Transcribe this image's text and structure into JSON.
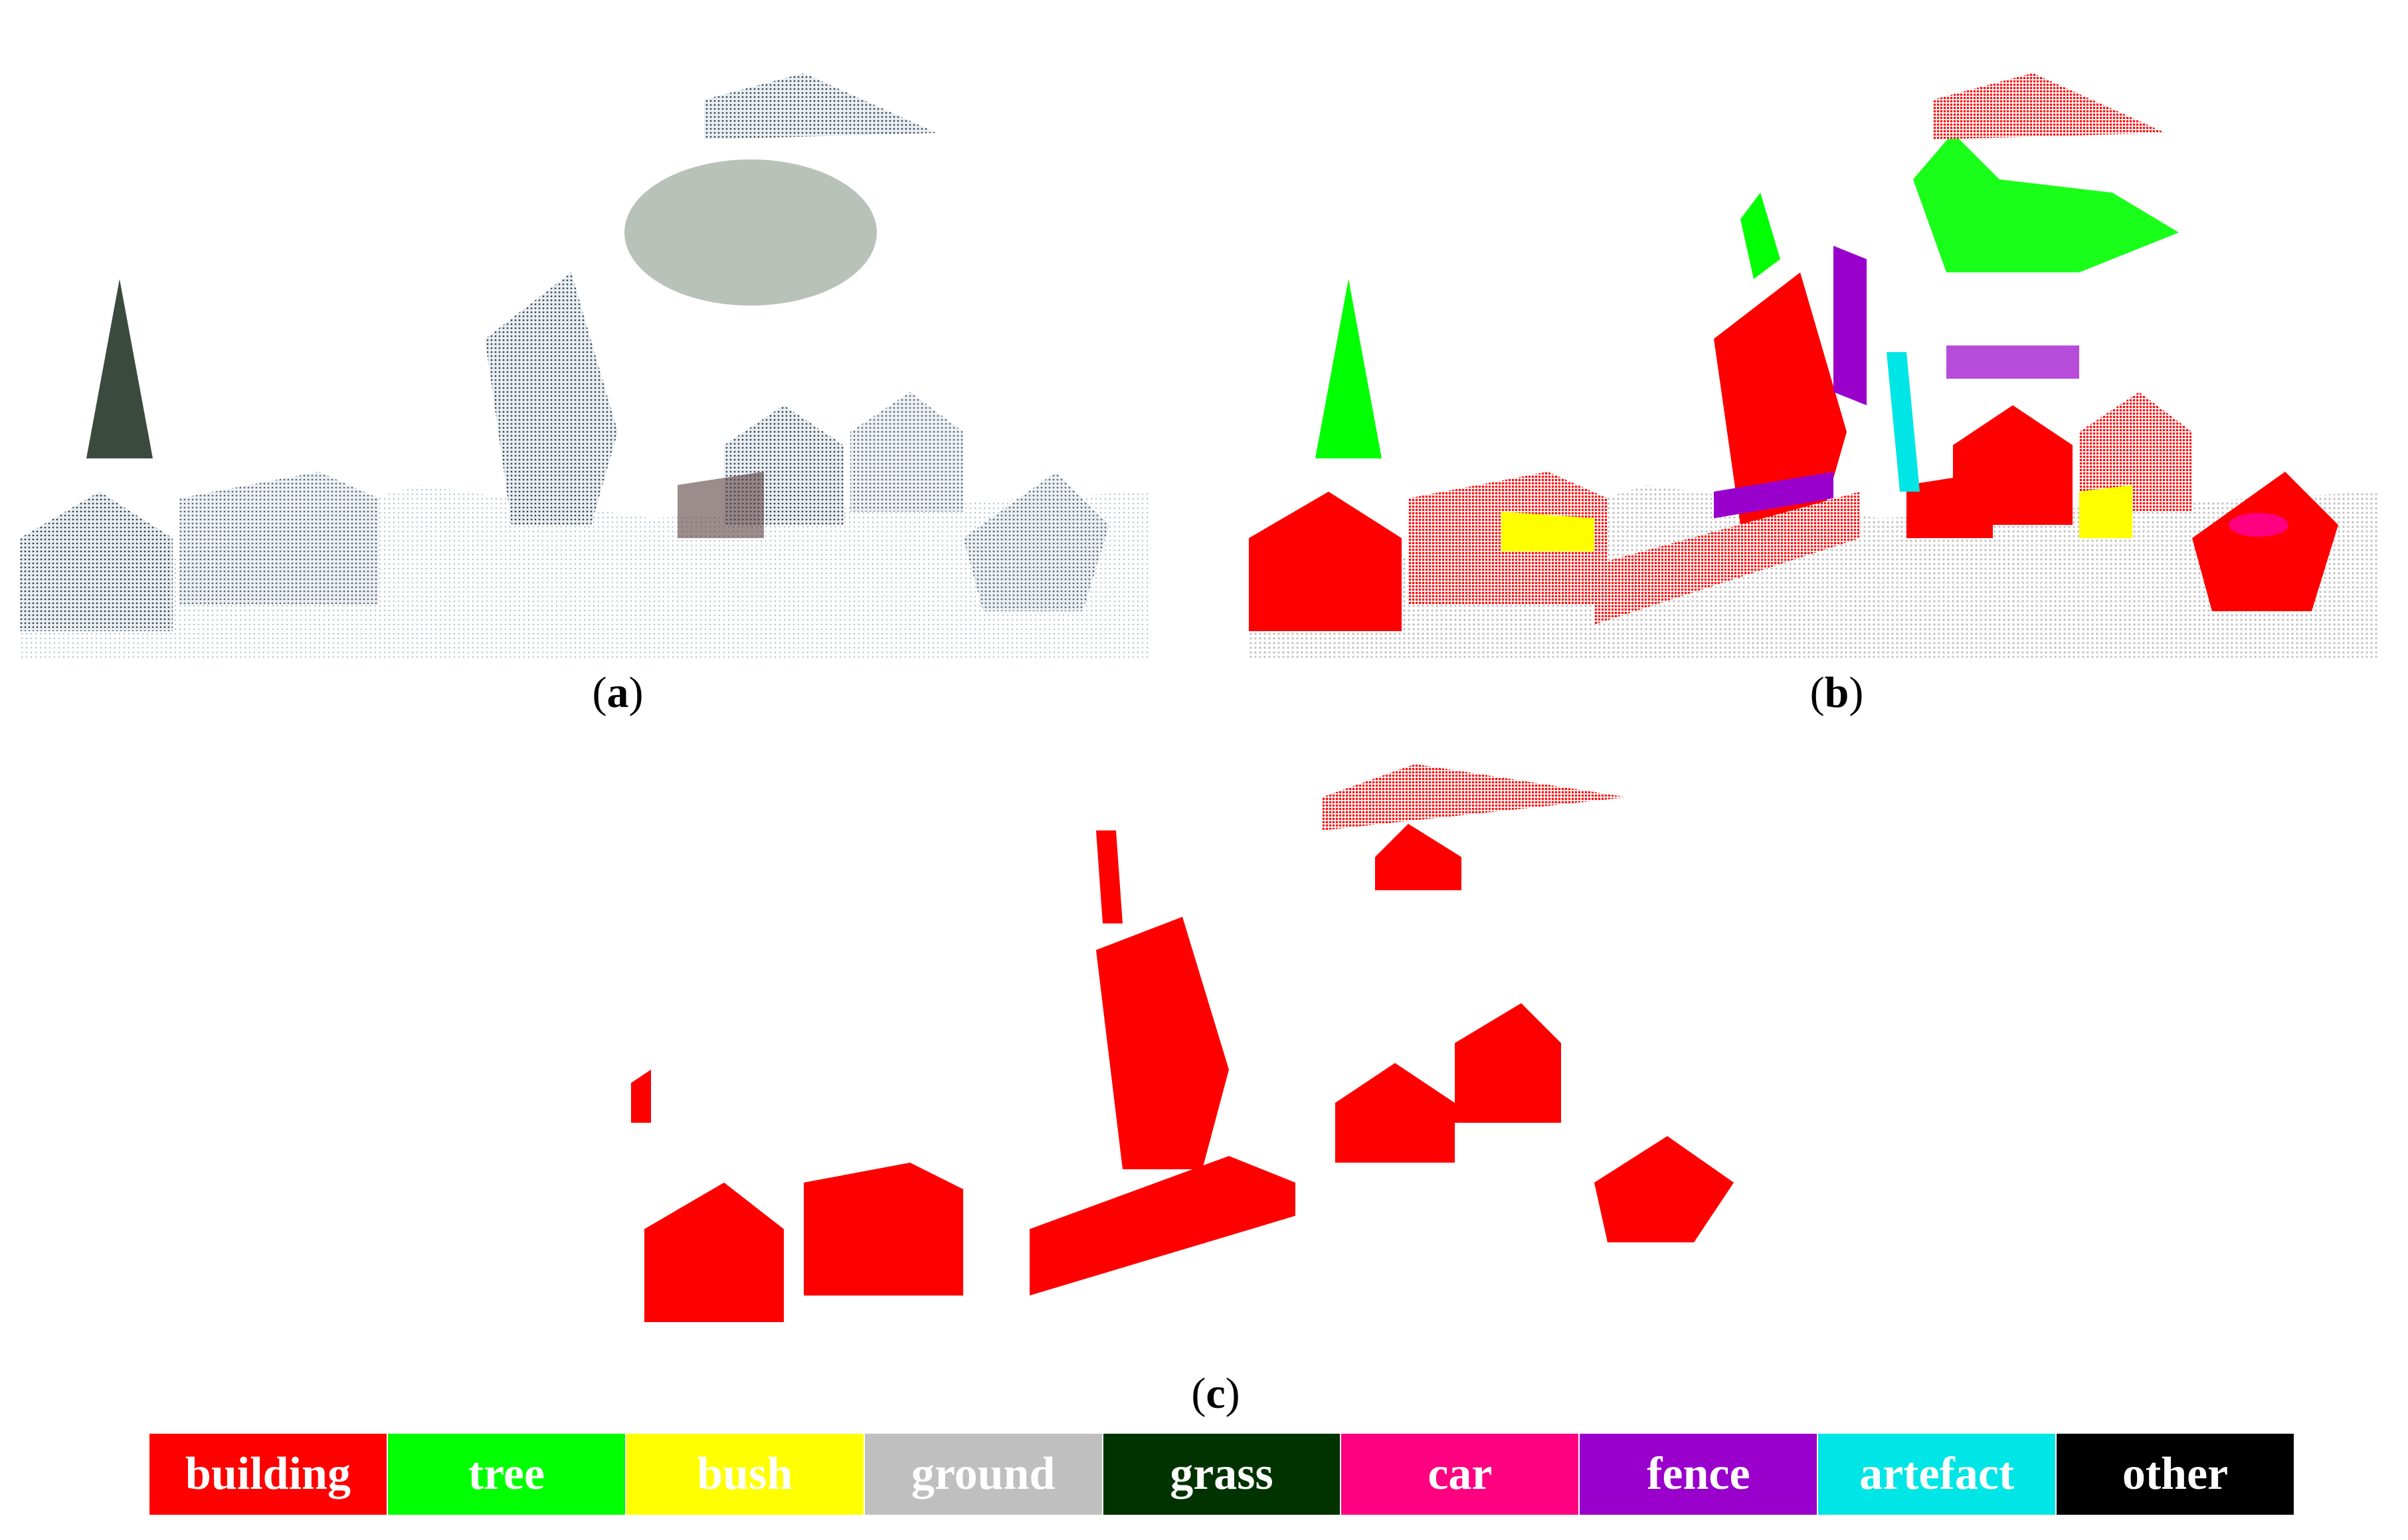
{
  "panels": [
    {
      "id": "a",
      "caption_open": "(",
      "caption_letter": "a",
      "caption_close": ")"
    },
    {
      "id": "b",
      "caption_open": "(",
      "caption_letter": "b",
      "caption_close": ")"
    },
    {
      "id": "c",
      "caption_open": "(",
      "caption_letter": "c",
      "caption_close": ")"
    }
  ],
  "legend": [
    {
      "label": "building",
      "color": "#ff0000"
    },
    {
      "label": "tree",
      "color": "#00ff00"
    },
    {
      "label": "bush",
      "color": "#ffff00"
    },
    {
      "label": "ground",
      "color": "#bfbfbf"
    },
    {
      "label": "grass",
      "color": "#003300"
    },
    {
      "label": "car",
      "color": "#ff0080"
    },
    {
      "label": "fence",
      "color": "#9900cc"
    },
    {
      "label": "artefact",
      "color": "#00e5e5"
    },
    {
      "label": "other",
      "color": "#000000"
    }
  ]
}
